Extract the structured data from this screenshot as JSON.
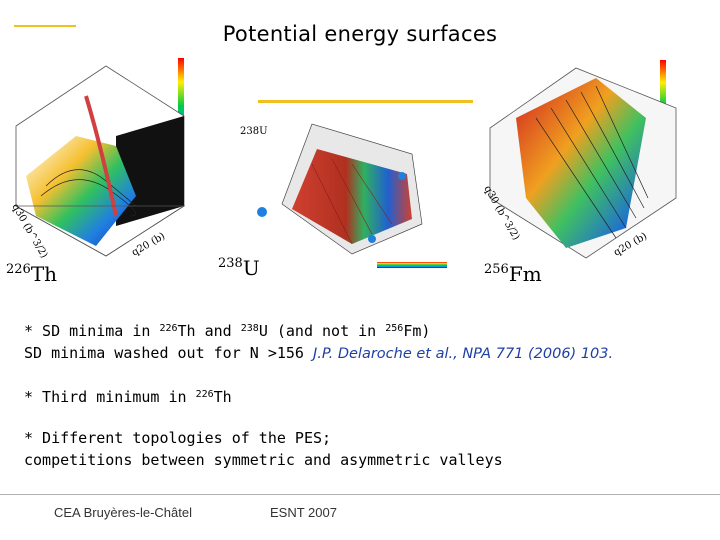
{
  "slide": {
    "title": "Potential energy surfaces",
    "accent_color": "#f0c020"
  },
  "figures": {
    "left": {
      "nucleus_mass": "226",
      "nucleus_symbol": "Th",
      "axis_label_1": "q20 (b)",
      "axis_label_2": "q30 (b^3/2)"
    },
    "middle": {
      "nucleus_mass": "238",
      "nucleus_symbol": "U",
      "inset_label": "238U"
    },
    "right": {
      "nucleus_mass": "256",
      "nucleus_symbol": "Fm",
      "axis_label_1": "q20 (b)",
      "axis_label_2": "q30 (b^3/2)"
    }
  },
  "bullets": {
    "b1_prefix": "* SD minima in ",
    "b1_mass1": "226",
    "b1_el1": "Th and ",
    "b1_mass2": "238",
    "b1_el2": "U (and not in ",
    "b1_mass3": "256",
    "b1_el3": "Fm)",
    "b1_line2": "SD minima  washed out for N >156 ",
    "b1_ref": "J.P.  Delaroche et al., NPA 771 (2006) 103.",
    "b2_prefix": "* Third minimum in ",
    "b2_mass": "226",
    "b2_el": "Th",
    "b3_line1": "* Different topologies of the PES;",
    "b3_line2": "competitions between symmetric and asymmetric valleys"
  },
  "footer": {
    "left": "CEA Bruyères-le-Châtel",
    "center": "ESNT 2007"
  }
}
